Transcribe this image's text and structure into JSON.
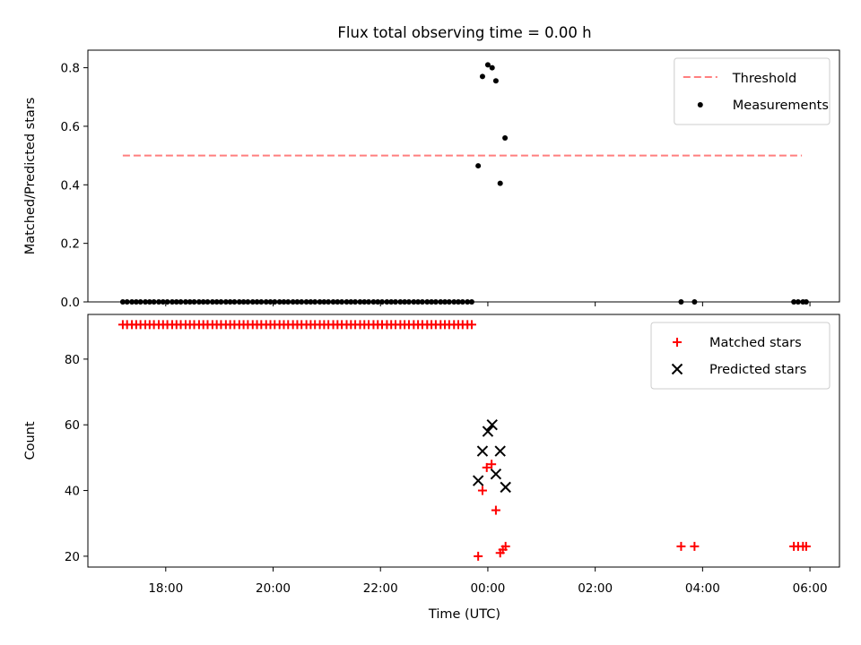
{
  "chart_data": {
    "type": "scatter",
    "title": "Flux total observing time = 0.00 h",
    "x_label": "Time (UTC)",
    "x_range_hours": [
      16.55,
      30.55
    ],
    "x_ticks": [
      {
        "value": 18,
        "label": "18:00"
      },
      {
        "value": 20,
        "label": "20:00"
      },
      {
        "value": 22,
        "label": "22:00"
      },
      {
        "value": 24,
        "label": "00:00"
      },
      {
        "value": 26,
        "label": "02:00"
      },
      {
        "value": 28,
        "label": "04:00"
      },
      {
        "value": 30,
        "label": "06:00"
      }
    ],
    "panels": [
      {
        "id": "ratio",
        "ylabel": "Matched/Predicted stars",
        "ylim": [
          0.0,
          0.86
        ],
        "yticks": [
          {
            "value": 0.0,
            "label": "0.0"
          },
          {
            "value": 0.2,
            "label": "0.2"
          },
          {
            "value": 0.4,
            "label": "0.4"
          },
          {
            "value": 0.6,
            "label": "0.6"
          },
          {
            "value": 0.8,
            "label": "0.8"
          }
        ],
        "legend_position": "top-right",
        "threshold": {
          "name": "Threshold",
          "value": 0.5,
          "x_start": 17.2,
          "x_end": 29.85,
          "color": "#ff7f7f",
          "dash": true
        },
        "series": [
          {
            "name": "Measurements",
            "marker": "dot",
            "color": "#000000",
            "points": [
              [
                17.2,
                0
              ],
              [
                17.28,
                0
              ],
              [
                17.37,
                0
              ],
              [
                17.45,
                0
              ],
              [
                17.53,
                0
              ],
              [
                17.62,
                0
              ],
              [
                17.7,
                0
              ],
              [
                17.78,
                0
              ],
              [
                17.87,
                0
              ],
              [
                17.95,
                0
              ],
              [
                18.03,
                0
              ],
              [
                18.12,
                0
              ],
              [
                18.2,
                0
              ],
              [
                18.28,
                0
              ],
              [
                18.37,
                0
              ],
              [
                18.45,
                0
              ],
              [
                18.53,
                0
              ],
              [
                18.62,
                0
              ],
              [
                18.7,
                0
              ],
              [
                18.78,
                0
              ],
              [
                18.87,
                0
              ],
              [
                18.95,
                0
              ],
              [
                19.03,
                0
              ],
              [
                19.12,
                0
              ],
              [
                19.2,
                0
              ],
              [
                19.28,
                0
              ],
              [
                19.37,
                0
              ],
              [
                19.45,
                0
              ],
              [
                19.53,
                0
              ],
              [
                19.62,
                0
              ],
              [
                19.7,
                0
              ],
              [
                19.78,
                0
              ],
              [
                19.87,
                0
              ],
              [
                19.95,
                0
              ],
              [
                20.03,
                0
              ],
              [
                20.12,
                0
              ],
              [
                20.2,
                0
              ],
              [
                20.28,
                0
              ],
              [
                20.37,
                0
              ],
              [
                20.45,
                0
              ],
              [
                20.53,
                0
              ],
              [
                20.62,
                0
              ],
              [
                20.7,
                0
              ],
              [
                20.78,
                0
              ],
              [
                20.87,
                0
              ],
              [
                20.95,
                0
              ],
              [
                21.03,
                0
              ],
              [
                21.12,
                0
              ],
              [
                21.2,
                0
              ],
              [
                21.28,
                0
              ],
              [
                21.37,
                0
              ],
              [
                21.45,
                0
              ],
              [
                21.53,
                0
              ],
              [
                21.62,
                0
              ],
              [
                21.7,
                0
              ],
              [
                21.78,
                0
              ],
              [
                21.87,
                0
              ],
              [
                21.95,
                0
              ],
              [
                22.03,
                0
              ],
              [
                22.12,
                0
              ],
              [
                22.2,
                0
              ],
              [
                22.28,
                0
              ],
              [
                22.37,
                0
              ],
              [
                22.45,
                0
              ],
              [
                22.53,
                0
              ],
              [
                22.62,
                0
              ],
              [
                22.7,
                0
              ],
              [
                22.78,
                0
              ],
              [
                22.87,
                0
              ],
              [
                22.95,
                0
              ],
              [
                23.03,
                0
              ],
              [
                23.12,
                0
              ],
              [
                23.2,
                0
              ],
              [
                23.28,
                0
              ],
              [
                23.37,
                0
              ],
              [
                23.45,
                0
              ],
              [
                23.53,
                0
              ],
              [
                23.62,
                0
              ],
              [
                23.7,
                0
              ],
              [
                23.82,
                0.465
              ],
              [
                23.9,
                0.77
              ],
              [
                24.0,
                0.81
              ],
              [
                24.08,
                0.8
              ],
              [
                24.15,
                0.755
              ],
              [
                24.23,
                0.405
              ],
              [
                24.32,
                0.56
              ],
              [
                27.6,
                0
              ],
              [
                27.85,
                0
              ],
              [
                29.7,
                0
              ],
              [
                29.78,
                0
              ],
              [
                29.87,
                0
              ],
              [
                29.93,
                0
              ]
            ]
          }
        ]
      },
      {
        "id": "count",
        "ylabel": "Count",
        "ylim": [
          16.7,
          93.6
        ],
        "yticks": [
          {
            "value": 20,
            "label": "20"
          },
          {
            "value": 40,
            "label": "40"
          },
          {
            "value": 60,
            "label": "60"
          },
          {
            "value": 80,
            "label": "80"
          }
        ],
        "legend_position": "top-right",
        "series": [
          {
            "name": "Matched stars",
            "marker": "plus",
            "color": "#ff0000",
            "points": [
              [
                17.2,
                90.5
              ],
              [
                17.28,
                90.5
              ],
              [
                17.37,
                90.5
              ],
              [
                17.45,
                90.5
              ],
              [
                17.53,
                90.5
              ],
              [
                17.62,
                90.5
              ],
              [
                17.7,
                90.5
              ],
              [
                17.78,
                90.5
              ],
              [
                17.87,
                90.5
              ],
              [
                17.95,
                90.5
              ],
              [
                18.03,
                90.5
              ],
              [
                18.12,
                90.5
              ],
              [
                18.2,
                90.5
              ],
              [
                18.28,
                90.5
              ],
              [
                18.37,
                90.5
              ],
              [
                18.45,
                90.5
              ],
              [
                18.53,
                90.5
              ],
              [
                18.62,
                90.5
              ],
              [
                18.7,
                90.5
              ],
              [
                18.78,
                90.5
              ],
              [
                18.87,
                90.5
              ],
              [
                18.95,
                90.5
              ],
              [
                19.03,
                90.5
              ],
              [
                19.12,
                90.5
              ],
              [
                19.2,
                90.5
              ],
              [
                19.28,
                90.5
              ],
              [
                19.37,
                90.5
              ],
              [
                19.45,
                90.5
              ],
              [
                19.53,
                90.5
              ],
              [
                19.62,
                90.5
              ],
              [
                19.7,
                90.5
              ],
              [
                19.78,
                90.5
              ],
              [
                19.87,
                90.5
              ],
              [
                19.95,
                90.5
              ],
              [
                20.03,
                90.5
              ],
              [
                20.12,
                90.5
              ],
              [
                20.2,
                90.5
              ],
              [
                20.28,
                90.5
              ],
              [
                20.37,
                90.5
              ],
              [
                20.45,
                90.5
              ],
              [
                20.53,
                90.5
              ],
              [
                20.62,
                90.5
              ],
              [
                20.7,
                90.5
              ],
              [
                20.78,
                90.5
              ],
              [
                20.87,
                90.5
              ],
              [
                20.95,
                90.5
              ],
              [
                21.03,
                90.5
              ],
              [
                21.12,
                90.5
              ],
              [
                21.2,
                90.5
              ],
              [
                21.28,
                90.5
              ],
              [
                21.37,
                90.5
              ],
              [
                21.45,
                90.5
              ],
              [
                21.53,
                90.5
              ],
              [
                21.62,
                90.5
              ],
              [
                21.7,
                90.5
              ],
              [
                21.78,
                90.5
              ],
              [
                21.87,
                90.5
              ],
              [
                21.95,
                90.5
              ],
              [
                22.03,
                90.5
              ],
              [
                22.12,
                90.5
              ],
              [
                22.2,
                90.5
              ],
              [
                22.28,
                90.5
              ],
              [
                22.37,
                90.5
              ],
              [
                22.45,
                90.5
              ],
              [
                22.53,
                90.5
              ],
              [
                22.62,
                90.5
              ],
              [
                22.7,
                90.5
              ],
              [
                22.78,
                90.5
              ],
              [
                22.87,
                90.5
              ],
              [
                22.95,
                90.5
              ],
              [
                23.03,
                90.5
              ],
              [
                23.12,
                90.5
              ],
              [
                23.2,
                90.5
              ],
              [
                23.28,
                90.5
              ],
              [
                23.37,
                90.5
              ],
              [
                23.45,
                90.5
              ],
              [
                23.53,
                90.5
              ],
              [
                23.62,
                90.5
              ],
              [
                23.7,
                90.5
              ],
              [
                23.82,
                20
              ],
              [
                23.9,
                40
              ],
              [
                23.98,
                47
              ],
              [
                24.07,
                48
              ],
              [
                24.15,
                34
              ],
              [
                24.23,
                21
              ],
              [
                24.28,
                22
              ],
              [
                24.33,
                23
              ],
              [
                27.6,
                23
              ],
              [
                27.85,
                23
              ],
              [
                29.7,
                23
              ],
              [
                29.78,
                23
              ],
              [
                29.87,
                23
              ],
              [
                29.93,
                23
              ]
            ]
          },
          {
            "name": "Predicted stars",
            "marker": "x",
            "color": "#000000",
            "points": [
              [
                23.82,
                43
              ],
              [
                23.9,
                52
              ],
              [
                24.0,
                58
              ],
              [
                24.08,
                60
              ],
              [
                24.15,
                45
              ],
              [
                24.23,
                52
              ],
              [
                24.33,
                41
              ]
            ]
          }
        ]
      }
    ]
  }
}
